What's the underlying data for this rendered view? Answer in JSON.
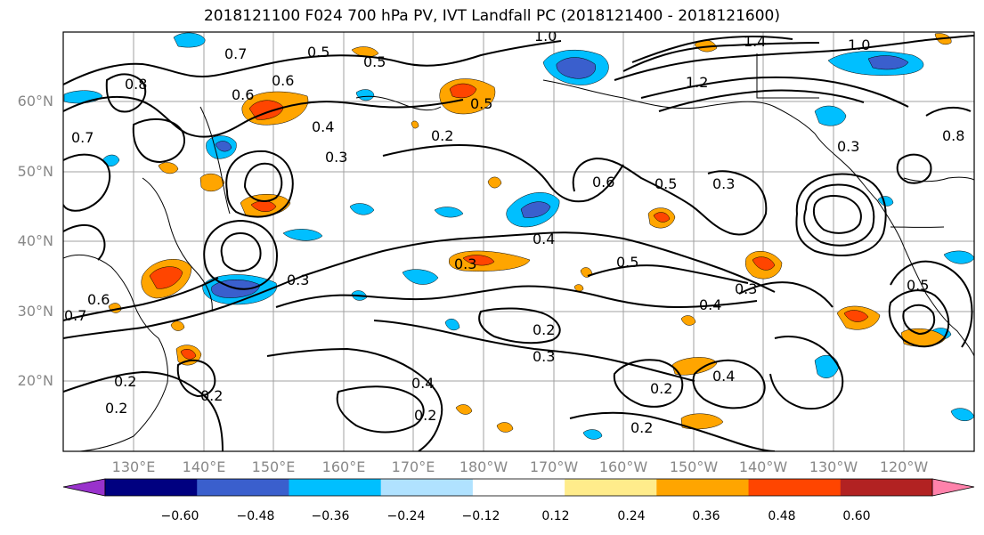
{
  "title": "2018121100 F024 700 hPa PV, IVT Landfall PC (2018121400 - 2018121600)",
  "lat_labels": [
    "60°N",
    "50°N",
    "40°N",
    "30°N",
    "20°N"
  ],
  "lon_labels": [
    "130°E",
    "140°E",
    "150°E",
    "160°E",
    "170°E",
    "180°W",
    "170°W",
    "160°W",
    "150°W",
    "140°W",
    "130°W",
    "120°W"
  ],
  "colorbar": {
    "tick_labels": [
      "−0.60",
      "−0.48",
      "−0.36",
      "−0.24",
      "−0.12",
      "0.12",
      "0.24",
      "0.36",
      "0.48",
      "0.60"
    ],
    "colors": [
      "#9932cc",
      "#000080",
      "#3a5fcd",
      "#00bfff",
      "#b0e2ff",
      "#ffffff",
      "#ffec8b",
      "#ffa500",
      "#ff4500",
      "#b22222",
      "#ff82ab"
    ]
  },
  "contour_labels": [
    "1.4",
    "1.0",
    "1.0",
    "0.8",
    "0.8",
    "0.7",
    "0.7",
    "0.6",
    "0.6",
    "0.6",
    "0.5",
    "0.5",
    "0.5",
    "0.5",
    "0.5",
    "0.4",
    "0.4",
    "0.4",
    "0.4",
    "0.4",
    "0.3",
    "0.3",
    "0.3",
    "0.3",
    "0.3",
    "0.3",
    "0.3",
    "0.2",
    "0.2",
    "0.2",
    "0.2",
    "0.2",
    "0.2",
    "0.2",
    "0.2",
    "1.2",
    "0.7",
    "0.6",
    "0.5"
  ]
}
